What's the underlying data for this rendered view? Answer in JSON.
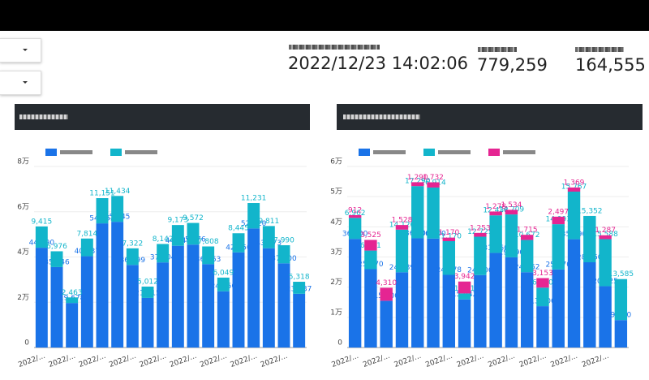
{
  "header": {
    "timestamp": "2022/12/23 14:02:06",
    "kpis": [
      "779,259",
      "164,555"
    ]
  },
  "chart_data": [
    {
      "type": "stacked_bar",
      "categories": [
        "2022/...",
        null,
        "2022/...",
        null,
        "2022/...",
        null,
        "2022/...",
        null,
        "2022/...",
        null,
        "2022/...",
        null,
        "2022/...",
        null,
        "2022/...",
        null,
        "2022/...",
        null
      ],
      "series": [
        {
          "color": "#1a73e8",
          "values": [
            44090,
            35546,
            19678,
            40337,
            54852,
            55545,
            36499,
            21915,
            37604,
            44949,
            45476,
            36853,
            24850,
            42050,
            52620,
            43873,
            37200,
            23737
          ],
          "value_labels": [
            "44,090",
            "35,546",
            "19,678",
            "40,337",
            "54,852",
            "55,545",
            "36,499",
            "21,915",
            "37,604",
            "44,949",
            "45,476",
            "36,853",
            "24,850",
            "42,050",
            "52,620",
            "43,873",
            "37,200",
            "23,737"
          ]
        },
        {
          "color": "#12b5cb",
          "values": [
            9415,
            6976,
            2463,
            7814,
            11151,
            11434,
            7322,
            5012,
            8142,
            9173,
            9572,
            7808,
            6049,
            8445,
            11231,
            9811,
            7990,
            5318
          ],
          "value_labels": [
            "9,415",
            "6,976",
            "2,463",
            "7,814",
            "11,151",
            "11,434",
            "7,322",
            "5,012",
            "8,142",
            "9,173",
            "9,572",
            "7,808",
            "6,049",
            "8,445",
            "11,231",
            "9,811",
            "7,990",
            "5,318"
          ]
        }
      ],
      "ylim": [
        0,
        80000
      ],
      "yticks": [
        0,
        {
          "value": 20000,
          "label": "2万"
        },
        {
          "value": 40000,
          "label": "4万"
        },
        {
          "value": 60000,
          "label": "6万"
        },
        {
          "value": 80000,
          "label": "8万"
        }
      ],
      "grid": true
    },
    {
      "type": "stacked_bar",
      "categories": [
        "2022/...",
        null,
        "2022/...",
        null,
        "2022/...",
        null,
        "2022/...",
        null,
        "2022/...",
        null,
        "2022/...",
        null,
        "2022/...",
        null,
        "2022/...",
        null,
        "2022/...",
        null
      ],
      "series": [
        {
          "color": "#1a73e8",
          "values": [
            36000,
            25970,
            15500,
            24939,
            36200,
            36100,
            24078,
            15942,
            24000,
            31360,
            29890,
            24962,
            13700,
            25870,
            35890,
            28250,
            20325,
            9090
          ],
          "value_labels": [
            "36,000",
            "25,970",
            "15,500",
            "24,939",
            "36,200",
            "36,100",
            "24,078",
            "15,942",
            "24,000",
            "31,360",
            "29,890",
            "24,962",
            "13,700",
            "25,870",
            "35,890",
            "28,250",
            "20,325",
            "9,090"
          ]
        },
        {
          "color": "#12b5cb",
          "values": [
            6962,
            6161,
            0,
            14126,
            17290,
            16914,
            11170,
            1981,
            12725,
            12438,
            14209,
            10672,
            6150,
            14993,
            15767,
            15352,
            15588,
            13585
          ],
          "value_labels": [
            "6,962",
            "6,161",
            null,
            "14,126",
            "17,290",
            "16,914",
            "11,170",
            "1,981",
            "12,725",
            "12,438",
            "14,209",
            "10,672",
            "6,150",
            "14,993",
            "15,767",
            "15,352",
            "15,588",
            "13,585"
          ]
        },
        {
          "color": "#e52592",
          "values": [
            912,
            3525,
            4310,
            1528,
            1290,
            1732,
            1170,
            3942,
            1253,
            1278,
            1534,
            1715,
            3153,
            2497,
            1369,
            0,
            1287,
            0
          ],
          "value_labels": [
            "912",
            "3,525",
            "4,310",
            "1,528",
            "1,290",
            "1,732",
            "1,170",
            "3,942",
            "1,253",
            "1,278",
            "1,534",
            "1,715",
            "3,153",
            "2,497",
            "1,369",
            null,
            "1,287",
            null
          ]
        }
      ],
      "ylim": [
        0,
        60000
      ],
      "yticks": [
        0,
        {
          "value": 10000,
          "label": "1万"
        },
        {
          "value": 20000,
          "label": "2万"
        },
        {
          "value": 30000,
          "label": "3万"
        },
        {
          "value": 40000,
          "label": "4万"
        },
        {
          "value": 50000,
          "label": "5万"
        },
        {
          "value": 60000,
          "label": "6万"
        }
      ],
      "grid": true
    }
  ]
}
